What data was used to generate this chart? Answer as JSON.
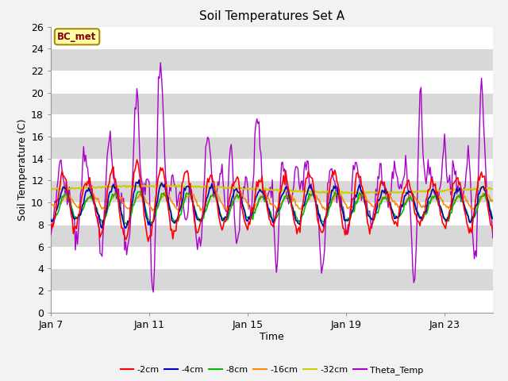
{
  "title": "Soil Temperatures Set A",
  "xlabel": "Time",
  "ylabel": "Soil Temperature (C)",
  "ylim": [
    0,
    26
  ],
  "yticks": [
    0,
    2,
    4,
    6,
    8,
    10,
    12,
    14,
    16,
    18,
    20,
    22,
    24,
    26
  ],
  "x_tick_labels": [
    "Jan 7",
    "Jan 11",
    "Jan 15",
    "Jan 19",
    "Jan 23"
  ],
  "x_tick_positions": [
    0,
    96,
    192,
    288,
    384
  ],
  "annotation_text": "BC_met",
  "colors": {
    "2cm": "#ff0000",
    "4cm": "#0000bb",
    "8cm": "#00bb00",
    "16cm": "#ff8800",
    "32cm": "#cccc00",
    "theta": "#aa00cc"
  },
  "legend_labels": [
    "-2cm",
    "-4cm",
    "-8cm",
    "-16cm",
    "-32cm",
    "Theta_Temp"
  ],
  "bg_color": "#d8d8d8",
  "band_color": "#ffffff",
  "n_points": 432
}
